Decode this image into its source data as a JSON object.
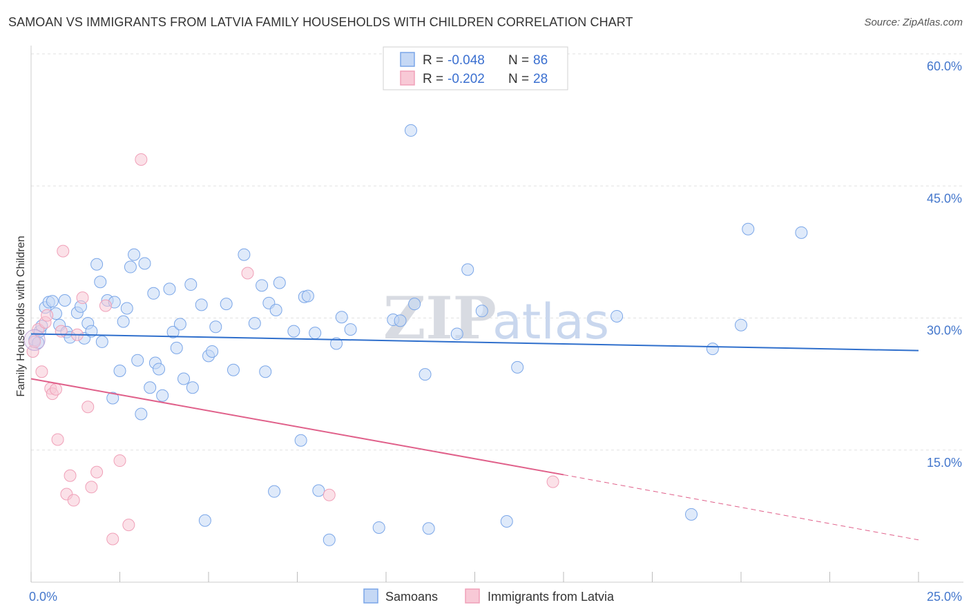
{
  "title": "SAMOAN VS IMMIGRANTS FROM LATVIA FAMILY HOUSEHOLDS WITH CHILDREN CORRELATION CHART",
  "source": "Source: ZipAtlas.com",
  "watermark": {
    "zip": "ZIP",
    "atlas": "atlas"
  },
  "chart_data": {
    "type": "scatter",
    "ylabel": "Family Households with Children",
    "xlim": [
      0,
      25
    ],
    "ylim": [
      0,
      60
    ],
    "y_ticks": [
      {
        "value": 60,
        "label": "60.0%"
      },
      {
        "value": 45,
        "label": "45.0%"
      },
      {
        "value": 30,
        "label": "30.0%"
      },
      {
        "value": 15,
        "label": "15.0%"
      }
    ],
    "x_tick_labels": [
      {
        "value": 0,
        "label": "0.0%"
      },
      {
        "value": 25,
        "label": "25.0%"
      }
    ],
    "x_minor_ticks": [
      0,
      2.5,
      5,
      7.5,
      10,
      12.5,
      15,
      17.5,
      20,
      22.5,
      25
    ],
    "legend": {
      "r_label": "R =",
      "n_label": "N =",
      "items": [
        {
          "r": "-0.048",
          "n": "86"
        },
        {
          "r": "-0.202",
          "n": "28"
        }
      ]
    },
    "series": [
      {
        "name": "Samoans",
        "color": "#7aa6e8",
        "fill": "#c5d8f5",
        "line_color": "#2f6fcc",
        "trend": {
          "x0": 0,
          "y0": 28.2,
          "x1": 25,
          "y1": 26.3
        },
        "points": [
          [
            0.1,
            27.5
          ],
          [
            0.2,
            27.2
          ],
          [
            0.25,
            28.5
          ],
          [
            0.3,
            29.1
          ],
          [
            0.4,
            31.2
          ],
          [
            0.5,
            31.8
          ],
          [
            0.6,
            31.9
          ],
          [
            0.7,
            30.5
          ],
          [
            0.8,
            29.2
          ],
          [
            0.95,
            32.0
          ],
          [
            1.0,
            28.4
          ],
          [
            1.1,
            27.8
          ],
          [
            1.3,
            30.6
          ],
          [
            1.4,
            31.3
          ],
          [
            1.5,
            27.7
          ],
          [
            1.6,
            29.4
          ],
          [
            1.7,
            28.5
          ],
          [
            1.85,
            36.1
          ],
          [
            1.95,
            34.1
          ],
          [
            2.0,
            27.3
          ],
          [
            2.15,
            32.0
          ],
          [
            2.3,
            20.9
          ],
          [
            2.35,
            31.8
          ],
          [
            2.5,
            24.0
          ],
          [
            2.6,
            29.6
          ],
          [
            2.7,
            31.1
          ],
          [
            2.8,
            35.8
          ],
          [
            2.9,
            37.2
          ],
          [
            3.0,
            25.2
          ],
          [
            3.1,
            19.1
          ],
          [
            3.2,
            36.2
          ],
          [
            3.35,
            22.1
          ],
          [
            3.45,
            32.8
          ],
          [
            3.5,
            24.9
          ],
          [
            3.6,
            24.2
          ],
          [
            3.7,
            21.2
          ],
          [
            3.9,
            33.3
          ],
          [
            4.0,
            28.4
          ],
          [
            4.1,
            26.6
          ],
          [
            4.2,
            29.3
          ],
          [
            4.3,
            23.1
          ],
          [
            4.5,
            33.8
          ],
          [
            4.55,
            22.1
          ],
          [
            4.8,
            31.5
          ],
          [
            4.9,
            7.0
          ],
          [
            5.0,
            25.7
          ],
          [
            5.1,
            26.2
          ],
          [
            5.2,
            29.0
          ],
          [
            5.5,
            31.6
          ],
          [
            5.7,
            24.1
          ],
          [
            6.0,
            37.2
          ],
          [
            6.3,
            29.4
          ],
          [
            6.5,
            33.7
          ],
          [
            6.6,
            23.9
          ],
          [
            6.7,
            31.7
          ],
          [
            6.85,
            10.3
          ],
          [
            6.9,
            30.9
          ],
          [
            7.0,
            34.0
          ],
          [
            7.4,
            28.5
          ],
          [
            7.6,
            16.1
          ],
          [
            7.7,
            32.4
          ],
          [
            7.8,
            32.5
          ],
          [
            8.0,
            28.3
          ],
          [
            8.1,
            10.4
          ],
          [
            8.4,
            4.8
          ],
          [
            8.6,
            27.1
          ],
          [
            8.75,
            30.1
          ],
          [
            9.0,
            28.7
          ],
          [
            9.8,
            6.2
          ],
          [
            10.2,
            29.8
          ],
          [
            10.4,
            29.7
          ],
          [
            10.7,
            51.3
          ],
          [
            10.8,
            31.6
          ],
          [
            11.1,
            23.6
          ],
          [
            11.2,
            6.1
          ],
          [
            12.0,
            28.2
          ],
          [
            12.3,
            35.5
          ],
          [
            12.7,
            30.8
          ],
          [
            13.4,
            6.9
          ],
          [
            13.7,
            24.4
          ],
          [
            16.5,
            30.2
          ],
          [
            18.6,
            7.7
          ],
          [
            19.2,
            26.5
          ],
          [
            20.0,
            29.2
          ],
          [
            20.2,
            40.1
          ],
          [
            21.7,
            39.7
          ]
        ]
      },
      {
        "name": "Immigrants from Latvia",
        "color": "#f0a0b8",
        "fill": "#f8c9d6",
        "line_color": "#e0608a",
        "trend": {
          "x0": 0,
          "y0": 23.1,
          "x1": 15,
          "y1": 12.2
        },
        "trend_dashed": {
          "x0": 15,
          "y0": 12.2,
          "x1": 25,
          "y1": 4.8
        },
        "points": [
          [
            0.05,
            26.2
          ],
          [
            0.1,
            27.3
          ],
          [
            0.2,
            28.7
          ],
          [
            0.3,
            23.9
          ],
          [
            0.4,
            29.5
          ],
          [
            0.45,
            30.3
          ],
          [
            0.55,
            22.0
          ],
          [
            0.6,
            21.4
          ],
          [
            0.7,
            21.9
          ],
          [
            0.75,
            16.2
          ],
          [
            0.85,
            28.5
          ],
          [
            0.9,
            37.6
          ],
          [
            1.0,
            10.0
          ],
          [
            1.1,
            12.1
          ],
          [
            1.2,
            9.3
          ],
          [
            1.3,
            28.1
          ],
          [
            1.45,
            32.3
          ],
          [
            1.6,
            19.9
          ],
          [
            1.7,
            10.8
          ],
          [
            1.85,
            12.5
          ],
          [
            2.1,
            31.4
          ],
          [
            2.3,
            4.9
          ],
          [
            2.5,
            13.8
          ],
          [
            2.75,
            6.5
          ],
          [
            3.1,
            48.0
          ],
          [
            6.1,
            35.1
          ],
          [
            8.4,
            9.9
          ],
          [
            14.7,
            11.4
          ]
        ]
      }
    ]
  },
  "bottom_legend": [
    "Samoans",
    "Immigrants from Latvia"
  ]
}
